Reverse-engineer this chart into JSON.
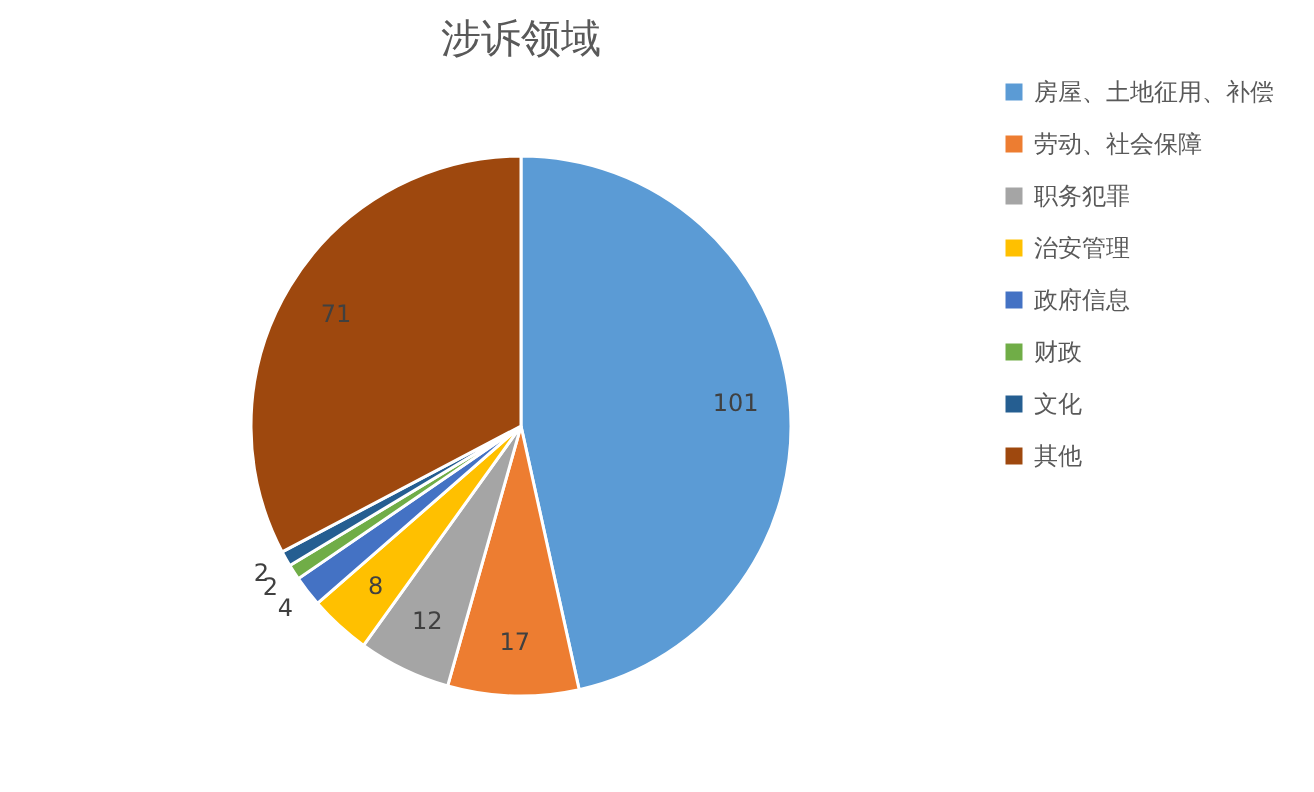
{
  "chart_data": {
    "type": "pie",
    "title": "涉诉领域",
    "categories": [
      "房屋、土地征用、补偿",
      "劳动、社会保障",
      "职务犯罪",
      "治安管理",
      "政府信息",
      "财政",
      "文化",
      "其他"
    ],
    "values": [
      101,
      17,
      12,
      8,
      4,
      2,
      2,
      71
    ],
    "colors": [
      "#5b9bd5",
      "#ed7d31",
      "#a5a5a5",
      "#ffc000",
      "#4472c4",
      "#70ad47",
      "#255e91",
      "#9e480e"
    ],
    "data_labels": true,
    "legend": "right"
  }
}
